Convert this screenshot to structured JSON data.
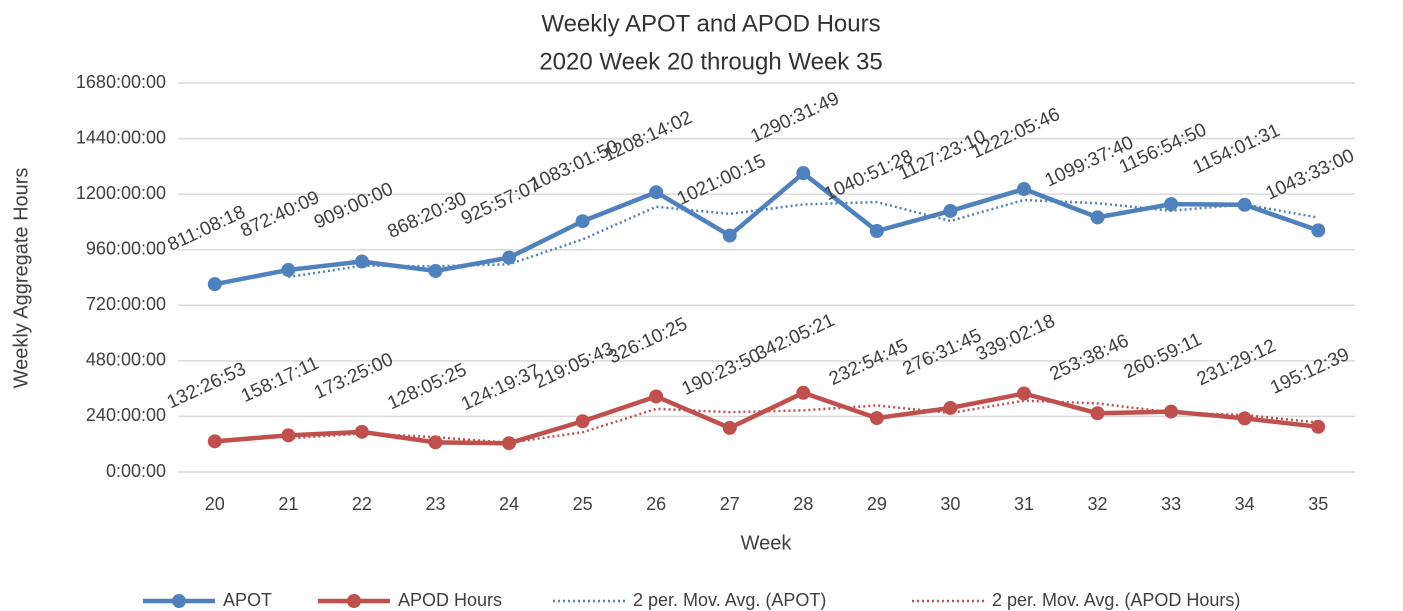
{
  "chart_data": {
    "type": "line",
    "title": "Weekly APOT and APOD Hours",
    "subtitle": "2020 Week 20 through Week 35",
    "x_label": "Week",
    "y_label": "Weekly Aggregate Hours",
    "categories": [
      "20",
      "21",
      "22",
      "23",
      "24",
      "25",
      "26",
      "27",
      "28",
      "29",
      "30",
      "31",
      "32",
      "33",
      "34",
      "35"
    ],
    "ylim": [
      0,
      1680
    ],
    "yticks": [
      {
        "value": 0,
        "label": "0:00:00"
      },
      {
        "value": 240,
        "label": "240:00:00"
      },
      {
        "value": 480,
        "label": "480:00:00"
      },
      {
        "value": 720,
        "label": "720:00:00"
      },
      {
        "value": 960,
        "label": "960:00:00"
      },
      {
        "value": 1200,
        "label": "1200:00:00"
      },
      {
        "value": 1440,
        "label": "1440:00:00"
      },
      {
        "value": 1680,
        "label": "1680:00:00"
      }
    ],
    "grid": true,
    "legend": "bottom",
    "series": [
      {
        "name": "APOT",
        "color": "#4f81bd",
        "line_style": "solid",
        "markers": true,
        "values": [
          811.1383,
          872.6692,
          909,
          868.3417,
          925.9519,
          1083.0306,
          1208.2339,
          1021.0042,
          1290.5303,
          1040.8578,
          1127.3861,
          1222.0961,
          1099.6278,
          1156.9139,
          1154.0253,
          1043.55
        ],
        "value_labels": [
          "811:08:18",
          "872:40:09",
          "909:00:00",
          "868:20:30",
          "925:57:07",
          "1083:01:50",
          "1208:14:02",
          "1021:00:15",
          "1290:31:49",
          "1040:51:28",
          "1127:23:10",
          "1222:05:46",
          "1099:37:40",
          "1156:54:50",
          "1154:01:31",
          "1043:33:00"
        ]
      },
      {
        "name": "APOD Hours",
        "color": "#c0504d",
        "line_style": "solid",
        "markers": true,
        "values": [
          132.4481,
          158.2864,
          173.4167,
          128.0903,
          124.3269,
          219.0953,
          326.1736,
          190.3972,
          342.0892,
          232.9125,
          276.5292,
          339.0383,
          253.6461,
          260.9864,
          231.4867,
          195.2108
        ],
        "value_labels": [
          "132:26:53",
          "158:17:11",
          "173:25:00",
          "128:05:25",
          "124:19:37",
          "219:05:43",
          "326:10:25",
          "190:23:50",
          "342:05:21",
          "232:54:45",
          "276:31:45",
          "339:02:18",
          "253:38:46",
          "260:59:11",
          "231:29:12",
          "195:12:39"
        ]
      },
      {
        "name": "2 per. Mov. Avg. (APOT)",
        "color": "#4f81bd",
        "line_style": "dotted",
        "markers": false,
        "values": [
          null,
          841.9,
          890.83,
          888.67,
          897.15,
          1004.49,
          1145.63,
          1114.62,
          1155.77,
          1165.69,
          1084.12,
          1174.74,
          1160.86,
          1128.27,
          1155.47,
          1098.79
        ]
      },
      {
        "name": "2 per. Mov. Avg. (APOD Hours)",
        "color": "#c0504d",
        "line_style": "dotted",
        "markers": false,
        "values": [
          null,
          145.37,
          165.85,
          150.75,
          126.21,
          171.71,
          272.63,
          258.29,
          266.24,
          287.5,
          254.72,
          307.78,
          296.34,
          257.32,
          246.24,
          213.35
        ]
      }
    ]
  }
}
